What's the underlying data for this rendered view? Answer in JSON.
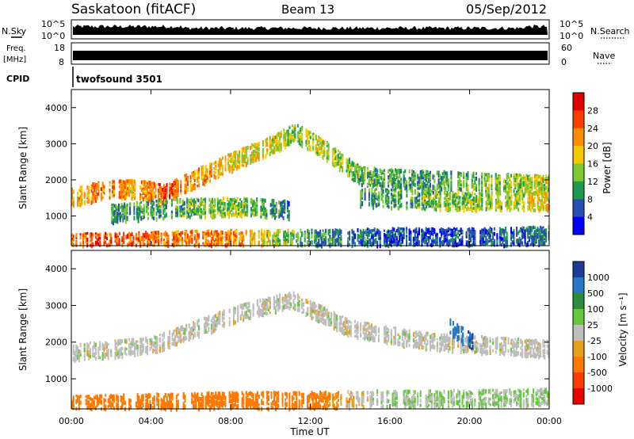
{
  "header": {
    "station": "Saskatoon (fitACF)",
    "beam": "Beam 13",
    "date": "05/Sep/2012"
  },
  "strips": {
    "nsky_label": "N.Sky",
    "nsky_ticks": [
      "10^5",
      "10^0"
    ],
    "nsearch_label": "N.Search",
    "nsearch_ticks": [
      "10^5",
      "10^0"
    ],
    "freq_label": "Freq.",
    "freq_unit": "[MHz]",
    "freq_ticks": [
      "18",
      "8"
    ],
    "nave_label": "Nave",
    "nave_ticks": [
      "60",
      "0"
    ],
    "cpid_label": "CPID",
    "cpid_value": "twofsound 3501"
  },
  "xaxis": {
    "label": "Time UT",
    "ticks": [
      "00:00",
      "04:00",
      "08:00",
      "12:00",
      "16:00",
      "20:00",
      "00:00"
    ]
  },
  "power_panel": {
    "ylabel": "Slant Range [km]",
    "yticks": [
      "4000",
      "3000",
      "2000",
      "1000"
    ],
    "colorbar_label": "Power [dB]",
    "colorbar_ticks": [
      "28",
      "24",
      "20",
      "16",
      "12",
      "8",
      "4"
    ],
    "colorbar_colors": [
      "#e00000",
      "#ff3c00",
      "#ff8c00",
      "#f5c800",
      "#7dc832",
      "#1e9b50",
      "#2850b4",
      "#0000ff"
    ]
  },
  "velocity_panel": {
    "ylabel": "Slant Range [km]",
    "yticks": [
      "4000",
      "3000",
      "2000",
      "1000"
    ],
    "colorbar_label": "Velocity [m s⁻¹]",
    "colorbar_ticks": [
      "1000",
      "500",
      "100",
      "25",
      "-25",
      "-100",
      "-500",
      "-1000"
    ],
    "colorbar_colors": [
      "#1e3c96",
      "#2878c8",
      "#2d8c3c",
      "#64c83c",
      "#bebebe",
      "#e6a01e",
      "#ff7800",
      "#ff3c00",
      "#e60000"
    ]
  },
  "chart_data": {
    "type": "heatmap",
    "x_range_hours": [
      0,
      24
    ],
    "y_range_km": [
      180,
      4500
    ],
    "power_bands": [
      {
        "x": [
          0,
          1.5,
          3.2,
          4.7,
          6.5,
          8.5,
          10.2,
          11.2,
          12.5,
          14.5,
          17,
          20,
          24
        ],
        "y": [
          1550,
          1750,
          1800,
          1650,
          2150,
          2650,
          3050,
          3350,
          2950,
          2150,
          2050,
          2000,
          1900
        ],
        "db": [
          20,
          26,
          22,
          28,
          22,
          20,
          18,
          16,
          18,
          14,
          12,
          14,
          18
        ]
      },
      {
        "x": [
          14.5,
          17,
          20,
          24
        ],
        "y": [
          1550,
          1500,
          1450,
          1450
        ],
        "db": [
          12,
          14,
          16,
          20
        ]
      },
      {
        "x": [
          0,
          4,
          8,
          12,
          16,
          20,
          24
        ],
        "y": [
          300,
          350,
          400,
          400,
          450,
          450,
          500
        ],
        "db": [
          28,
          26,
          24,
          12,
          8,
          8,
          10
        ]
      },
      {
        "x": [
          2,
          5,
          8.5,
          11
        ],
        "y": [
          1100,
          1250,
          1300,
          1200
        ],
        "db": [
          12,
          14,
          16,
          10
        ]
      }
    ],
    "velocity_bands": [
      {
        "x": [
          0,
          4,
          8,
          11,
          14,
          18,
          24
        ],
        "y": [
          1750,
          1950,
          2750,
          3200,
          2400,
          2050,
          1850
        ],
        "vel": [
          0,
          0,
          0,
          0,
          0,
          0,
          0
        ]
      },
      {
        "x": [
          0,
          4,
          8,
          12,
          16,
          20,
          24
        ],
        "y": [
          350,
          400,
          450,
          450,
          500,
          500,
          550
        ],
        "vel": [
          -100,
          -100,
          -100,
          -100,
          25,
          25,
          25
        ]
      },
      {
        "x": [
          19,
          20.2
        ],
        "y": [
          2450,
          2000
        ],
        "vel": [
          500,
          800
        ]
      }
    ]
  }
}
